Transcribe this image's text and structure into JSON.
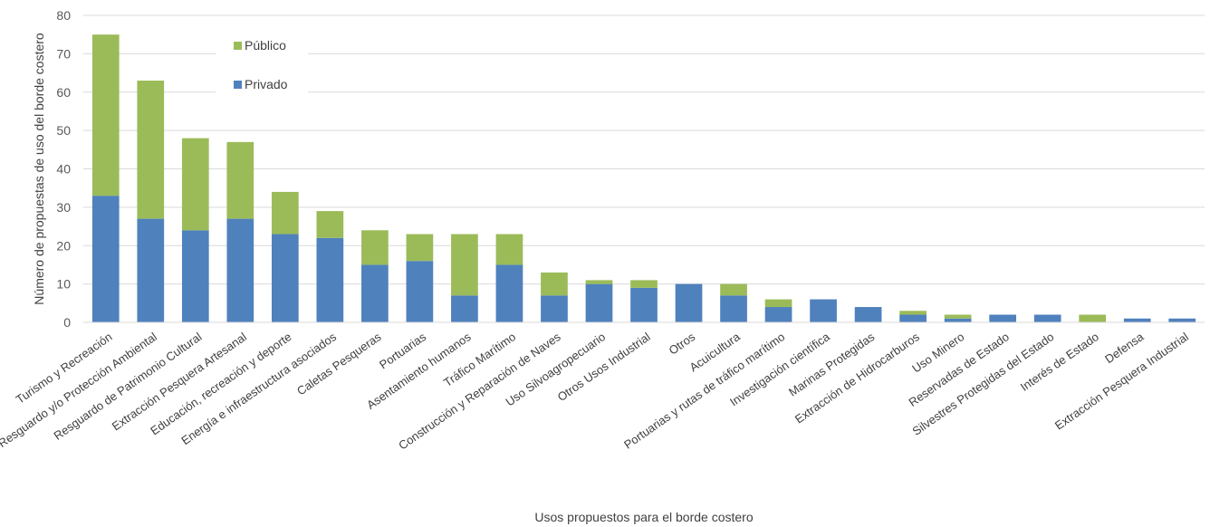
{
  "chart_data": {
    "type": "bar",
    "stacked": true,
    "xlabel": "Usos propuestos para el borde costero",
    "ylabel": "Número de propuestas de uso del borde costero",
    "ylim": [
      0,
      80
    ],
    "yticks": [
      0,
      10,
      20,
      30,
      40,
      50,
      60,
      70,
      80
    ],
    "grid": true,
    "legend_position": "top-left",
    "categories": [
      "Turismo y Recreación",
      "Resguardo y/o Protección Ambiental",
      "Resguardo de Patrimonio Cultural",
      "Extracción Pesquera Artesanal",
      "Educación, recreación y deporte",
      "Energía e infraestructura asociados",
      "Caletas Pesqueras",
      "Portuarias",
      "Asentamiento humanos",
      "Tráfico Marítimo",
      "Construcción y Reparación de Naves",
      "Uso Silvoagropecuario",
      "Otros Usos Industrial",
      "Otros",
      "Acuicultura",
      "Portuarias y rutas de tráfico marítimo",
      "Investigación científica",
      "Marinas Protegidas",
      "Extracción de Hidrocarburos",
      "Uso Minero",
      "Reservadas de Estado",
      "Silvestres Protegidas del Estado",
      "Interés de Estado",
      "Defensa",
      "Extracción Pesquera Industrial"
    ],
    "series": [
      {
        "name": "Privado",
        "color": "#4f81bd",
        "values": [
          33,
          27,
          24,
          27,
          23,
          22,
          15,
          16,
          7,
          15,
          7,
          10,
          9,
          10,
          7,
          4,
          6,
          4,
          2,
          1,
          2,
          2,
          0,
          1,
          1
        ]
      },
      {
        "name": "Público",
        "color": "#9bbb59",
        "values": [
          42,
          36,
          24,
          20,
          11,
          7,
          9,
          7,
          16,
          8,
          6,
          1,
          2,
          0,
          3,
          2,
          0,
          0,
          1,
          1,
          0,
          0,
          2,
          0,
          0
        ]
      }
    ]
  }
}
